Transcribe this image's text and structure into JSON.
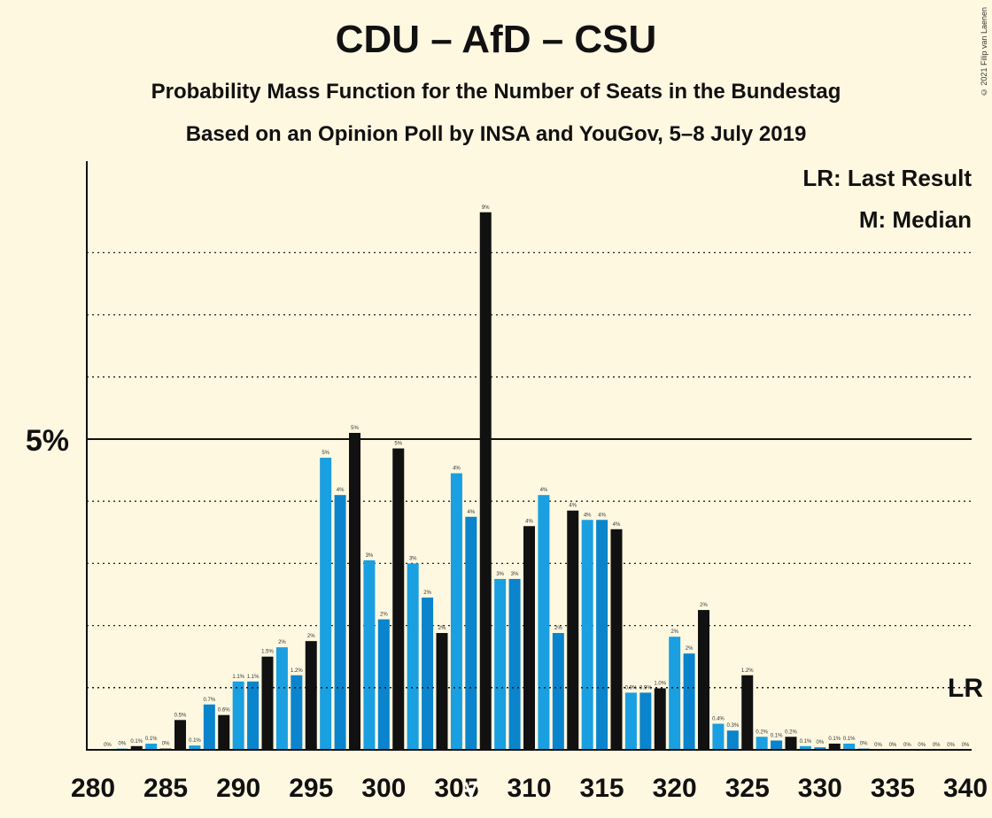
{
  "title": "CDU – AfD – CSU",
  "subtitle": "Probability Mass Function for the Number of Seats in the Bundestag",
  "subtitle2": "Based on an Opinion Poll by INSA and YouGov, 5–8 July 2019",
  "copyright": "© 2021 Filip van Laenen",
  "colors": {
    "background": "#fff8e1",
    "bar_black": "#111111",
    "bar_blue_light": "#1a9fe0",
    "bar_blue_dark": "#0a84cc"
  },
  "chart_data": {
    "type": "bar",
    "x": [
      281,
      282,
      283,
      284,
      285,
      286,
      287,
      288,
      289,
      290,
      291,
      292,
      293,
      294,
      295,
      296,
      297,
      298,
      299,
      300,
      301,
      302,
      303,
      304,
      305,
      306,
      307,
      308,
      309,
      310,
      311,
      312,
      313,
      314,
      315,
      316,
      317,
      318,
      319,
      320,
      321,
      322,
      323,
      324,
      325,
      326,
      327,
      328,
      329,
      330,
      331,
      332,
      333,
      334,
      335,
      336,
      337,
      338,
      339,
      340
    ],
    "values": [
      0.0,
      0.02,
      0.06,
      0.1,
      0.02,
      0.48,
      0.07,
      0.73,
      0.56,
      1.1,
      1.1,
      1.5,
      1.65,
      1.2,
      1.75,
      4.7,
      4.1,
      5.1,
      3.05,
      2.1,
      4.85,
      3.0,
      2.45,
      1.88,
      4.45,
      3.75,
      8.65,
      2.75,
      2.75,
      3.6,
      4.1,
      1.88,
      3.85,
      3.7,
      3.7,
      3.55,
      0.92,
      0.92,
      0.99,
      1.82,
      1.55,
      2.25,
      0.42,
      0.31,
      1.2,
      0.21,
      0.15,
      0.21,
      0.06,
      0.04,
      0.1,
      0.1,
      0.02,
      0.0,
      0.0,
      0.0,
      0.0,
      0.0,
      0.0,
      0.0
    ],
    "labels": [
      "0%",
      "0%",
      "0.1%",
      "0.1%",
      "0%",
      "0.5%",
      "0.1%",
      "0.7%",
      "0.6%",
      "1.1%",
      "1.1%",
      "1.5%",
      "2%",
      "1.2%",
      "2%",
      "5%",
      "4%",
      "5%",
      "3%",
      "2%",
      "5%",
      "3%",
      "2%",
      "2%",
      "4%",
      "4%",
      "9%",
      "3%",
      "3%",
      "4%",
      "4%",
      "2%",
      "4%",
      "4%",
      "4%",
      "4%",
      "0.9%",
      "0.9%",
      "1.0%",
      "2%",
      "2%",
      "2%",
      "0.4%",
      "0.3%",
      "1.2%",
      "0.2%",
      "0.1%",
      "0.2%",
      "0.1%",
      "0%",
      "0.1%",
      "0.1%",
      "0%",
      "0%",
      "0%",
      "0%",
      "0%",
      "0%",
      "0%",
      "0%"
    ],
    "color_keys": [
      "k",
      "b1",
      "k",
      "b1",
      "k",
      "k",
      "b1",
      "b2",
      "k",
      "b1",
      "b2",
      "k",
      "b1",
      "b2",
      "k",
      "b1",
      "b2",
      "k",
      "b1",
      "b2",
      "k",
      "b1",
      "b2",
      "k",
      "b1",
      "b2",
      "k",
      "b1",
      "b2",
      "k",
      "b1",
      "b2",
      "k",
      "b1",
      "b2",
      "k",
      "b1",
      "b2",
      "k",
      "b1",
      "b2",
      "k",
      "b1",
      "b2",
      "k",
      "b1",
      "b2",
      "k",
      "b1",
      "b2",
      "k",
      "b1",
      "b2",
      "k",
      "b1",
      "b2",
      "k",
      "b1",
      "b2",
      "k"
    ],
    "xticks": [
      280,
      285,
      290,
      295,
      300,
      305,
      310,
      315,
      320,
      325,
      330,
      335,
      340
    ],
    "xlim": [
      280,
      340
    ],
    "ylim": [
      0,
      9.5
    ],
    "y_major_tick": {
      "value": 5,
      "label": "5%"
    },
    "y_minor_gridlines": [
      1,
      2,
      3,
      4,
      6,
      7,
      8
    ],
    "median": {
      "x": 306,
      "label": "M: Median"
    },
    "last_result": {
      "label_short": "LR",
      "label": "LR: Last Result",
      "value": 1.0
    },
    "legend_position": "top-right"
  }
}
